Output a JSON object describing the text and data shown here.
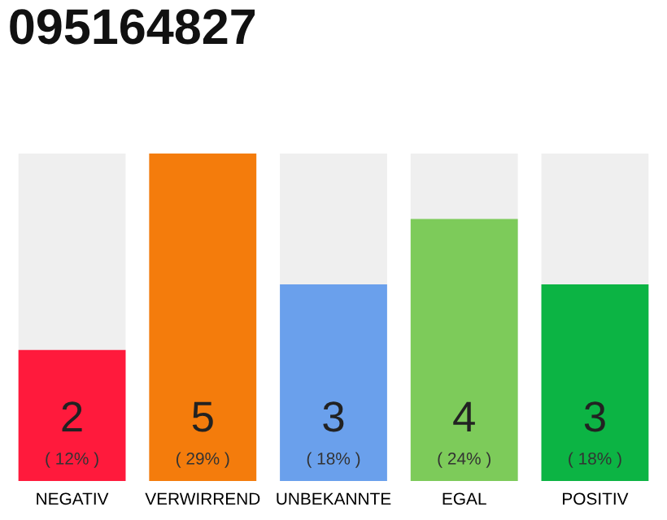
{
  "chart_data": {
    "type": "bar",
    "title": "095164827",
    "categories": [
      "NEGATIV",
      "VERWIRREND",
      "UNBEKANNTE",
      "EGAL",
      "POSITIV"
    ],
    "values": [
      2,
      5,
      3,
      4,
      3
    ],
    "colors": [
      "#ff1a3c",
      "#f47c0c",
      "#6aa0ec",
      "#7dcb5a",
      "#0cb444"
    ],
    "value_labels": [
      "2\n( 12% )",
      "5\n( 29% )",
      "3\n( 18% )",
      "4\n( 24% )",
      "3\n( 18% )"
    ],
    "grid": false,
    "legend": false
  }
}
